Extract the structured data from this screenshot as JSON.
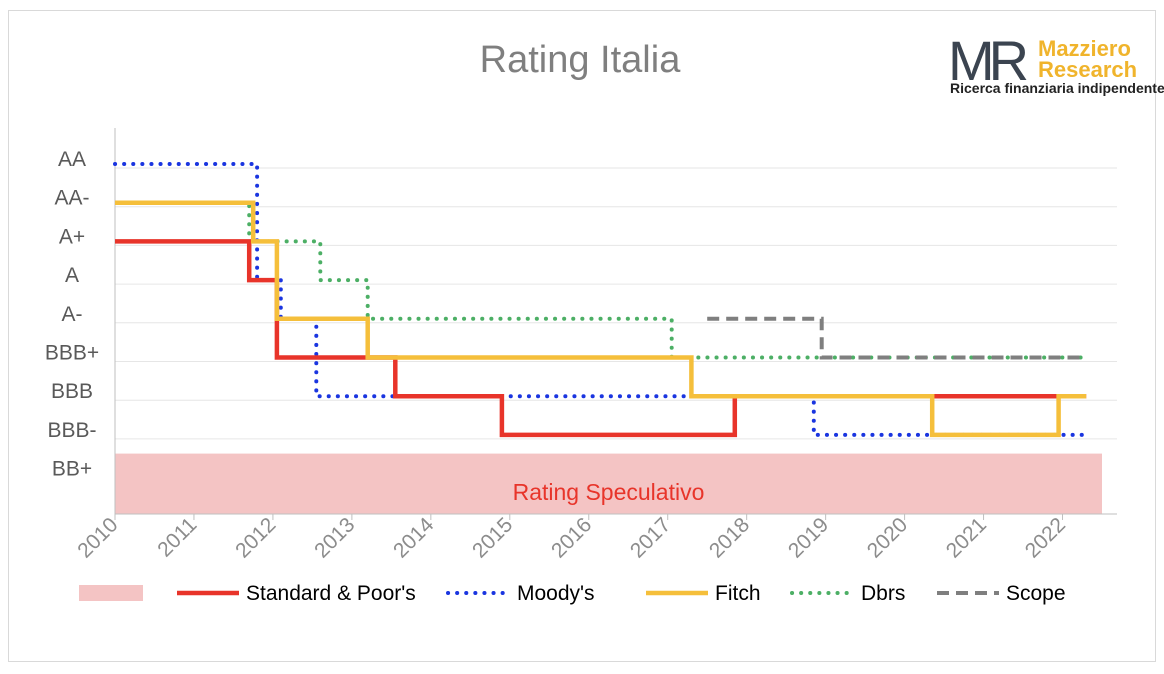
{
  "chart_data": {
    "type": "line",
    "title": "Rating Italia",
    "xlabel": "",
    "ylabel": "",
    "xlim": [
      2010,
      2022.5
    ],
    "x_ticks": [
      "2010",
      "2011",
      "2012",
      "2013",
      "2014",
      "2015",
      "2016",
      "2017",
      "2018",
      "2019",
      "2020",
      "2021",
      "2022"
    ],
    "y_ticks": [
      "AA",
      "AA-",
      "A+",
      "A",
      "A-",
      "BBB+",
      "BBB",
      "BBB-",
      "BB+"
    ],
    "grid": "horizontal",
    "legend_position": "bottom",
    "speculative_zone": {
      "label": "Rating Speculativo",
      "from_rating": "BB+",
      "color": "#f4c4c4",
      "text_color": "#e8342a"
    },
    "series": [
      {
        "name": "Standard & Poor's",
        "color": "#e8342a",
        "style": "solid",
        "points": [
          [
            2010,
            "A+"
          ],
          [
            2011.7,
            "A+"
          ],
          [
            2011.7,
            "A"
          ],
          [
            2012.05,
            "A"
          ],
          [
            2012.05,
            "BBB+"
          ],
          [
            2013.55,
            "BBB+"
          ],
          [
            2013.55,
            "BBB"
          ],
          [
            2014.9,
            "BBB"
          ],
          [
            2014.9,
            "BBB-"
          ],
          [
            2017.85,
            "BBB-"
          ],
          [
            2017.85,
            "BBB"
          ],
          [
            2022.3,
            "BBB"
          ]
        ]
      },
      {
        "name": "Moody's",
        "color": "#1a35e0",
        "style": "dotted",
        "points": [
          [
            2010,
            "AA"
          ],
          [
            2011.8,
            "AA"
          ],
          [
            2011.8,
            "A"
          ],
          [
            2012.1,
            "A"
          ],
          [
            2012.1,
            "A-"
          ],
          [
            2012.55,
            "A-"
          ],
          [
            2012.55,
            "BBB"
          ],
          [
            2018.85,
            "BBB"
          ],
          [
            2018.85,
            "BBB-"
          ],
          [
            2022.3,
            "BBB-"
          ]
        ]
      },
      {
        "name": "Fitch",
        "color": "#f5bf3b",
        "style": "solid",
        "points": [
          [
            2010,
            "AA-"
          ],
          [
            2011.75,
            "AA-"
          ],
          [
            2011.75,
            "A+"
          ],
          [
            2012.05,
            "A+"
          ],
          [
            2012.05,
            "A-"
          ],
          [
            2013.2,
            "A-"
          ],
          [
            2013.2,
            "BBB+"
          ],
          [
            2017.3,
            "BBB+"
          ],
          [
            2017.3,
            "BBB"
          ],
          [
            2020.35,
            "BBB"
          ],
          [
            2020.35,
            "BBB-"
          ],
          [
            2021.95,
            "BBB-"
          ],
          [
            2021.95,
            "BBB"
          ],
          [
            2022.3,
            "BBB"
          ]
        ]
      },
      {
        "name": "Dbrs",
        "color": "#4caf65",
        "style": "dotted",
        "points": [
          [
            2011.05,
            "AA-"
          ],
          [
            2011.7,
            "AA-"
          ],
          [
            2011.7,
            "A+"
          ],
          [
            2012.6,
            "A+"
          ],
          [
            2012.6,
            "A"
          ],
          [
            2013.2,
            "A"
          ],
          [
            2013.2,
            "A-"
          ],
          [
            2017.05,
            "A-"
          ],
          [
            2017.05,
            "BBB+"
          ],
          [
            2022.3,
            "BBB+"
          ]
        ]
      },
      {
        "name": "Scope",
        "color": "#7f7f7f",
        "style": "dashed",
        "points": [
          [
            2017.5,
            "A-"
          ],
          [
            2018.95,
            "A-"
          ],
          [
            2018.95,
            "BBB+"
          ],
          [
            2022.3,
            "BBB+"
          ]
        ]
      }
    ]
  },
  "logo": {
    "mark": "MR",
    "name_line1": "Mazziero",
    "name_line2": "Research",
    "tagline": "Ricerca finanziaria indipendente",
    "name_color": "#f0b42c"
  }
}
